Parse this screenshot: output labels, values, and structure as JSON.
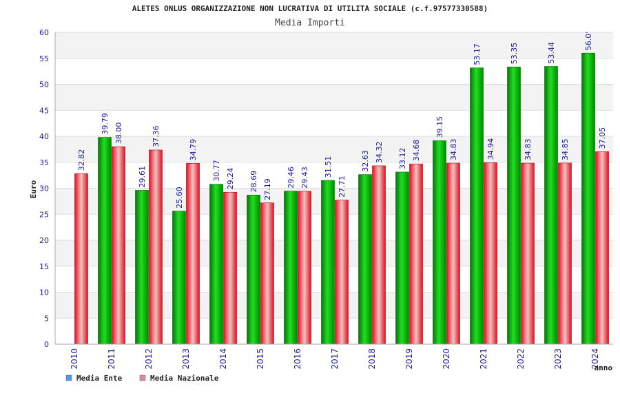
{
  "chart_data": {
    "type": "bar",
    "title": "ALETES ONLUS ORGANIZZAZIONE NON LUCRATIVA DI UTILITA SOCIALE (c.f.97577330588)",
    "subtitle": "Media Importi",
    "xlabel": "anno",
    "ylabel": "Euro",
    "ylim": [
      0,
      60
    ],
    "yticks": [
      0,
      5,
      10,
      15,
      20,
      25,
      30,
      35,
      40,
      45,
      50,
      55,
      60
    ],
    "grid": true,
    "legend_position": "bottom-left",
    "categories": [
      "2010",
      "2011",
      "2012",
      "2013",
      "2014",
      "2015",
      "2016",
      "2017",
      "2018",
      "2019",
      "2020",
      "2021",
      "2022",
      "2023",
      "2024"
    ],
    "series": [
      {
        "name": "Media Ente",
        "color": "#00b000",
        "legend_color": "#5599ee",
        "values": [
          null,
          39.79,
          29.61,
          25.6,
          30.77,
          28.69,
          29.46,
          31.51,
          32.63,
          33.12,
          39.15,
          53.17,
          53.35,
          53.44,
          56.0
        ],
        "labels": [
          "",
          "39.79",
          "29.61",
          "25.60",
          "30.77",
          "28.69",
          "29.46",
          "31.51",
          "32.63",
          "33.12",
          "39.15",
          "53.17",
          "53.35",
          "53.44",
          "56.0'"
        ]
      },
      {
        "name": "Media Nazionale",
        "color": "#ee2233",
        "legend_color": "#dd88aa",
        "values": [
          32.82,
          38.0,
          37.36,
          34.79,
          29.24,
          27.19,
          29.43,
          27.71,
          34.32,
          34.68,
          34.83,
          34.94,
          34.83,
          34.85,
          37.05
        ],
        "labels": [
          "32.82",
          "38.00",
          "37.36",
          "34.79",
          "29.24",
          "27.19",
          "29.43",
          "27.71",
          "34.32",
          "34.68",
          "34.83",
          "34.94",
          "34.83",
          "34.85",
          "37.05"
        ]
      }
    ]
  }
}
